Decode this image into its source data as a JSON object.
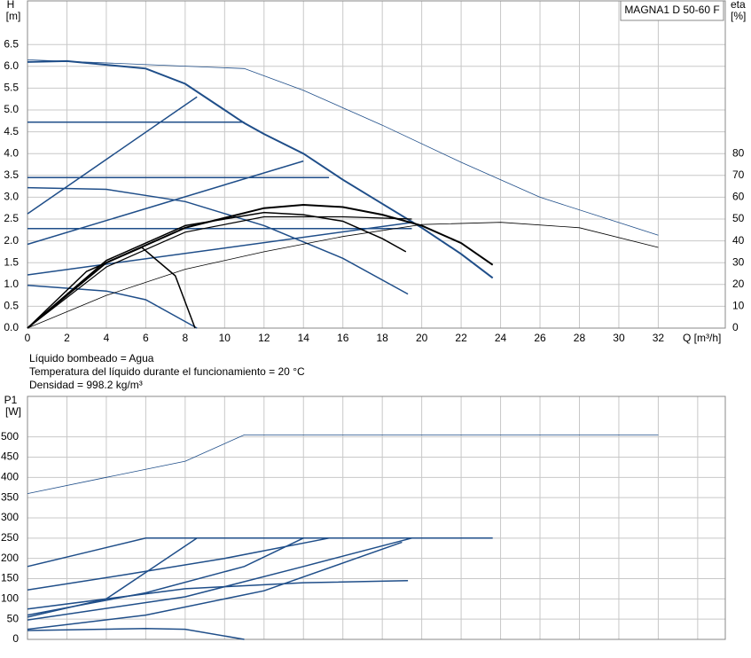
{
  "charts": [
    {
      "type": "line",
      "legend_title": "MAGNA1 D 50-60 F",
      "ylabel": "H",
      "yunit": "[m]",
      "y2label": "eta",
      "y2unit": "[%]",
      "xlabel": "Q [m³/h]",
      "xlim": [
        0,
        35.4
      ],
      "xticks": [
        0,
        2,
        4,
        6,
        8,
        10,
        12,
        14,
        16,
        18,
        20,
        22,
        24,
        26,
        28,
        30,
        32
      ],
      "ylim": [
        0,
        7.5
      ],
      "yticks": [
        {
          "value": 0,
          "label": "0.0"
        },
        0.5,
        {
          "value": 1,
          "label": "1.0"
        },
        1.5,
        {
          "value": 2,
          "label": "2.0"
        },
        2.5,
        {
          "value": 3,
          "label": "3.0"
        },
        3.5,
        {
          "value": 4,
          "label": "4.0"
        },
        4.5,
        {
          "value": 5,
          "label": "5.0"
        },
        5.5,
        {
          "value": 6,
          "label": "6.0"
        },
        6.5
      ],
      "y2lim": [
        0,
        150
      ],
      "y2ticks": [
        0,
        10,
        20,
        30,
        40,
        50,
        60,
        70,
        80
      ],
      "grid": true,
      "series": [
        {
          "color": "#1f4e89",
          "width": 2,
          "x": [
            0,
            2,
            6,
            8,
            10,
            11,
            12,
            14,
            16,
            18,
            20,
            22,
            23.6
          ],
          "values": [
            6.1,
            6.12,
            5.95,
            5.6,
            5.0,
            4.7,
            4.45,
            4.0,
            3.4,
            2.85,
            2.3,
            1.7,
            1.15
          ]
        },
        {
          "color": "#1f4e89",
          "width": 0.8,
          "x": [
            0,
            11,
            14,
            18,
            22,
            26,
            32
          ],
          "values": [
            6.15,
            5.95,
            5.45,
            4.65,
            3.8,
            3.0,
            2.13
          ]
        },
        {
          "color": "#1f4e89",
          "width": 1.5,
          "x": [
            0,
            11
          ],
          "values": [
            4.72,
            4.72
          ]
        },
        {
          "color": "#1f4e89",
          "width": 1.5,
          "x": [
            0,
            15.3
          ],
          "values": [
            3.45,
            3.45
          ]
        },
        {
          "color": "#1f4e89",
          "width": 1.5,
          "x": [
            0,
            19.5
          ],
          "values": [
            2.28,
            2.28
          ]
        },
        {
          "color": "#1f4e89",
          "width": 1.5,
          "x": [
            0,
            8.6
          ],
          "values": [
            2.62,
            5.3
          ]
        },
        {
          "color": "#1f4e89",
          "width": 1.5,
          "x": [
            0,
            14
          ],
          "values": [
            1.92,
            3.83
          ]
        },
        {
          "color": "#1f4e89",
          "width": 1.5,
          "x": [
            0,
            19.5
          ],
          "values": [
            1.22,
            2.42
          ]
        },
        {
          "color": "#1f4e89",
          "width": 1.5,
          "x": [
            0,
            4,
            8,
            12,
            16,
            19.3
          ],
          "values": [
            3.22,
            3.18,
            2.9,
            2.35,
            1.6,
            0.78
          ]
        },
        {
          "color": "#1f4e89",
          "width": 1.5,
          "x": [
            0,
            4,
            6,
            8.6
          ],
          "values": [
            0.98,
            0.85,
            0.65,
            0
          ]
        },
        {
          "color": "#000000",
          "width": 1.5,
          "x": [
            0,
            3,
            5.8,
            7.5,
            8.5
          ],
          "values": [
            0,
            1.3,
            1.85,
            1.2,
            0
          ]
        },
        {
          "color": "#000000",
          "width": 2,
          "axis": "y2",
          "x": [
            0,
            4,
            8,
            12,
            14,
            16,
            18,
            20,
            22,
            23.6
          ],
          "values": [
            0,
            30,
            46,
            55,
            56.5,
            55.5,
            52,
            47,
            39,
            29
          ]
        },
        {
          "color": "#000000",
          "width": 1.5,
          "axis": "y2",
          "x": [
            0,
            4,
            8,
            12,
            14,
            16,
            18,
            19.2
          ],
          "values": [
            0,
            31,
            47,
            53,
            52,
            49,
            41,
            35
          ]
        },
        {
          "color": "#000000",
          "width": 1.2,
          "axis": "y2",
          "x": [
            0,
            4,
            8,
            12,
            16,
            19.5
          ],
          "values": [
            0,
            28,
            44,
            51,
            51,
            50
          ]
        },
        {
          "color": "#000000",
          "width": 0.8,
          "axis": "y2",
          "x": [
            0,
            4,
            8,
            12,
            16,
            20,
            24,
            28,
            32
          ],
          "values": [
            0,
            15,
            27,
            35,
            42,
            47.5,
            48.5,
            46,
            37
          ]
        }
      ]
    },
    {
      "type": "line",
      "notes": [
        "Líquido bombeado = Agua",
        "Temperatura del líquido durante el funcionamiento = 20 °C",
        "Densidad = 998.2 kg/m³"
      ],
      "ylabel": "P1",
      "yunit": "[W]",
      "xlim": [
        0,
        35.4
      ],
      "xticks": [
        0,
        2,
        4,
        6,
        8,
        10,
        12,
        14,
        16,
        18,
        20,
        22,
        24,
        26,
        28,
        30,
        32,
        34
      ],
      "xticklabels": false,
      "ylim": [
        0,
        600
      ],
      "yticks": [
        0,
        50,
        100,
        150,
        200,
        250,
        300,
        350,
        400,
        450,
        500
      ],
      "grid": true,
      "series": [
        {
          "color": "#1f4e89",
          "width": 0.8,
          "x": [
            0,
            4,
            8,
            11,
            32
          ],
          "values": [
            360,
            400,
            440,
            505,
            505
          ]
        },
        {
          "color": "#1f4e89",
          "width": 1.5,
          "x": [
            0,
            3,
            6,
            23.6
          ],
          "values": [
            180,
            215,
            250,
            250
          ]
        },
        {
          "color": "#1f4e89",
          "width": 1.5,
          "x": [
            0,
            5,
            10,
            15.3
          ],
          "values": [
            122,
            160,
            200,
            250
          ]
        },
        {
          "color": "#1f4e89",
          "width": 1.5,
          "x": [
            0,
            4,
            8.6
          ],
          "values": [
            55,
            100,
            250
          ]
        },
        {
          "color": "#1f4e89",
          "width": 1.5,
          "x": [
            0,
            6,
            11,
            14
          ],
          "values": [
            60,
            115,
            180,
            250
          ]
        },
        {
          "color": "#1f4e89",
          "width": 1.5,
          "x": [
            0,
            8,
            14,
            19.5
          ],
          "values": [
            48,
            105,
            180,
            250
          ]
        },
        {
          "color": "#1f4e89",
          "width": 1.5,
          "x": [
            0,
            6,
            12,
            19
          ],
          "values": [
            25,
            60,
            120,
            240
          ]
        },
        {
          "color": "#1f4e89",
          "width": 1.5,
          "x": [
            0,
            8,
            14,
            19.3
          ],
          "values": [
            75,
            125,
            140,
            145
          ]
        },
        {
          "color": "#1f4e89",
          "width": 1.5,
          "x": [
            0,
            6,
            8,
            11
          ],
          "values": [
            22,
            27,
            25,
            0
          ]
        }
      ]
    }
  ]
}
